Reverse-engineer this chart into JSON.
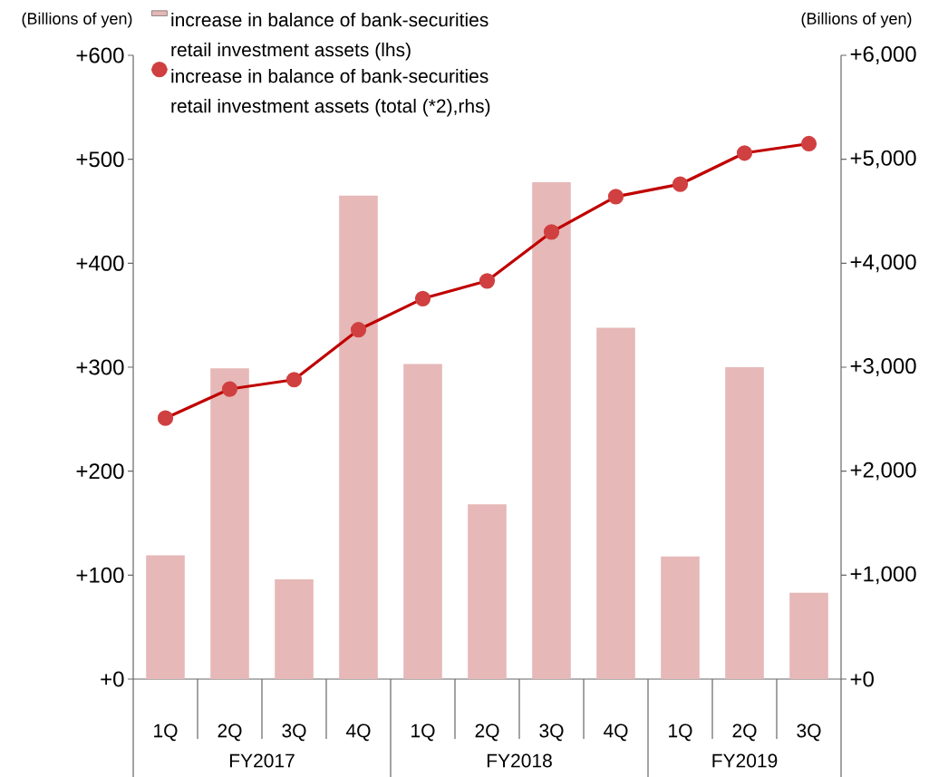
{
  "chart_data": {
    "type": "bar",
    "categories": [
      "1Q",
      "2Q",
      "3Q",
      "4Q",
      "1Q",
      "2Q",
      "3Q",
      "4Q",
      "1Q",
      "2Q",
      "3Q"
    ],
    "ylabel": "(Billions of yen)",
    "y2label": "(Billions of yen)",
    "series": [
      {
        "name": "increase in balance of bank-securities retail investment assets (lhs)",
        "color": "#e6b8b7",
        "values": [
          119,
          299,
          96,
          465,
          303,
          168,
          478,
          338,
          118,
          300,
          83
        ]
      },
      {
        "name": "increase in balance of bank-securities retail investment assets (total (*2),rhs)",
        "type": "line",
        "axis": "y2",
        "color": "#c00000",
        "marker": "circle",
        "line_style": "solid",
        "values": [
          2510,
          2790,
          2880,
          3360,
          3660,
          3830,
          4300,
          4640,
          4760,
          5060,
          5150
        ]
      }
    ],
    "ylim": [
      0,
      600
    ],
    "yticks": [
      {
        "value": 0,
        "label": "+0"
      },
      {
        "value": 100,
        "label": "+100"
      },
      {
        "value": 200,
        "label": "+200"
      },
      {
        "value": 300,
        "label": "+300"
      },
      {
        "value": 400,
        "label": "+400"
      },
      {
        "value": 500,
        "label": "+500"
      },
      {
        "value": 600,
        "label": "+600"
      }
    ],
    "y2lim": [
      0,
      6000
    ],
    "y2ticks": [
      {
        "value": 0,
        "label": "+0"
      },
      {
        "value": 1000,
        "label": "+1,000"
      },
      {
        "value": 2000,
        "label": "+2,000"
      },
      {
        "value": 3000,
        "label": "+3,000"
      },
      {
        "value": 4000,
        "label": "+4,000"
      },
      {
        "value": 5000,
        "label": "+5,000"
      },
      {
        "value": 6000,
        "label": "+6,000"
      }
    ],
    "annotations": [
      "FY2017",
      "FY2018",
      "FY2019"
    ],
    "grid": false,
    "legend": "top left"
  }
}
